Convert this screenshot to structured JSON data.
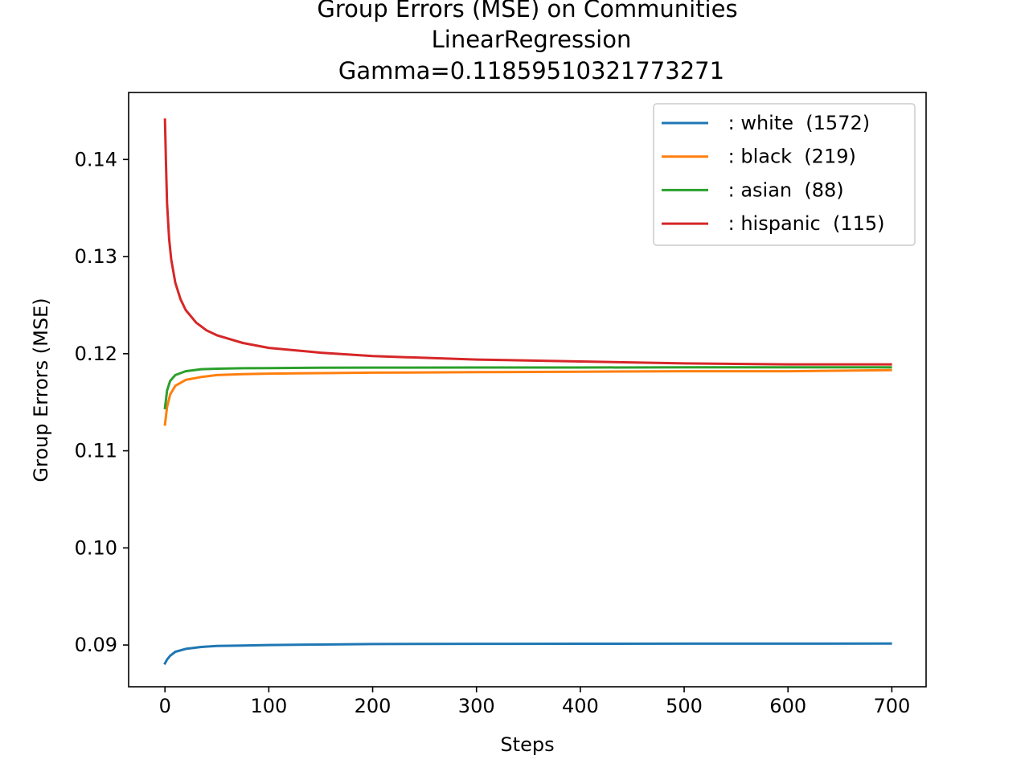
{
  "chart_data": {
    "type": "line",
    "title_lines": [
      "Group Errors (MSE) on Communities",
      "LinearRegression",
      "Gamma=0.11859510321773271"
    ],
    "xlabel": "Steps",
    "ylabel": "Group Errors (MSE)",
    "xlim": [
      -35,
      733
    ],
    "ylim": [
      0.0857,
      0.1469
    ],
    "xticks": [
      0,
      100,
      200,
      300,
      400,
      500,
      600,
      700
    ],
    "xtick_labels": [
      "0",
      "100",
      "200",
      "300",
      "400",
      "500",
      "600",
      "700"
    ],
    "yticks": [
      0.09,
      0.1,
      0.11,
      0.12,
      0.13,
      0.14
    ],
    "ytick_labels": [
      "0.09",
      "0.10",
      "0.11",
      "0.12",
      "0.13",
      "0.14"
    ],
    "grid": false,
    "legend_position": "top-right",
    "series": [
      {
        "name": " : white  (1572)",
        "color": "#1f77b4",
        "x": [
          0,
          2,
          5,
          10,
          20,
          35,
          50,
          75,
          100,
          150,
          200,
          300,
          400,
          500,
          600,
          699
        ],
        "y": [
          0.0881,
          0.0885,
          0.0889,
          0.0893,
          0.0896,
          0.0898,
          0.0899,
          0.08995,
          0.09,
          0.09005,
          0.0901,
          0.09012,
          0.09013,
          0.09014,
          0.09014,
          0.09015
        ]
      },
      {
        "name": " : black  (219)",
        "color": "#ff7f0e",
        "x": [
          0,
          2,
          5,
          10,
          20,
          35,
          50,
          75,
          100,
          150,
          200,
          300,
          400,
          500,
          600,
          699
        ],
        "y": [
          0.1127,
          0.1145,
          0.1158,
          0.1167,
          0.1173,
          0.1176,
          0.1178,
          0.1179,
          0.11795,
          0.118,
          0.11805,
          0.1181,
          0.11815,
          0.1182,
          0.1182,
          0.1183
        ]
      },
      {
        "name": " : asian  (88)",
        "color": "#2ca02c",
        "x": [
          0,
          2,
          5,
          10,
          20,
          35,
          50,
          75,
          100,
          150,
          200,
          300,
          400,
          500,
          600,
          699
        ],
        "y": [
          0.1144,
          0.1162,
          0.1172,
          0.1178,
          0.1182,
          0.1184,
          0.11845,
          0.1185,
          0.11852,
          0.11855,
          0.11857,
          0.11858,
          0.11858,
          0.11859,
          0.11859,
          0.11859
        ]
      },
      {
        "name": " : hispanic  (115)",
        "color": "#d62728",
        "x": [
          0,
          1,
          2,
          4,
          6,
          10,
          15,
          20,
          30,
          40,
          50,
          75,
          100,
          150,
          200,
          300,
          400,
          500,
          600,
          699
        ],
        "y": [
          0.1441,
          0.1395,
          0.1355,
          0.1318,
          0.1297,
          0.1273,
          0.1256,
          0.1245,
          0.1232,
          0.1224,
          0.1219,
          0.1211,
          0.1206,
          0.1201,
          0.11975,
          0.1194,
          0.1192,
          0.119,
          0.1189,
          0.1189
        ]
      }
    ]
  }
}
